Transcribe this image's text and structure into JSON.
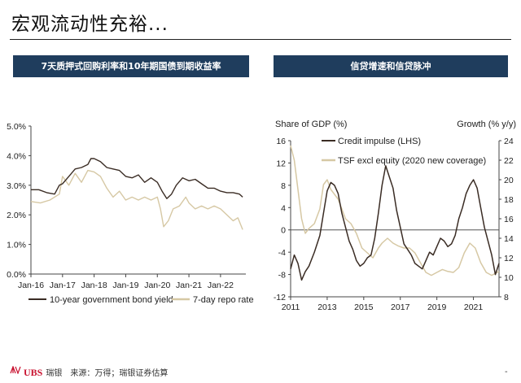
{
  "page": {
    "title": "宏观流动性充裕...",
    "left_panel_title": "7天质押式回购利率和10年期国债到期收益率",
    "right_panel_title": "信贷增速和信贷脉冲",
    "footer_brand": "UBS",
    "footer_brand_cn": "瑞银",
    "footer_source": "来源：万得；瑞银证券估算",
    "footer_mark": "-"
  },
  "colors": {
    "dark": "#3a2c24",
    "tan": "#d6c8a4",
    "header": "#1f3d5d"
  },
  "chart_data": [
    {
      "type": "line",
      "title": "7天质押式回购利率和10年期国债到期收益率",
      "x_ticks": [
        "Jan-16",
        "Jan-17",
        "Jan-18",
        "Jan-19",
        "Jan-20",
        "Jan-21",
        "Jan-22"
      ],
      "y_ticks": [
        "5.0%",
        "4.0%",
        "3.0%",
        "2.0%",
        "1.0%",
        "0.0%"
      ],
      "ylim": [
        0,
        5
      ],
      "xlim": [
        2016.0,
        2022.75
      ],
      "series": [
        {
          "name": "10-year government bond yield",
          "color": "#3a2c24",
          "x": [
            2016.0,
            2016.25,
            2016.5,
            2016.75,
            2016.9,
            2017.0,
            2017.2,
            2017.4,
            2017.6,
            2017.8,
            2017.9,
            2018.0,
            2018.2,
            2018.4,
            2018.6,
            2018.8,
            2019.0,
            2019.2,
            2019.4,
            2019.6,
            2019.8,
            2020.0,
            2020.15,
            2020.3,
            2020.45,
            2020.6,
            2020.8,
            2021.0,
            2021.2,
            2021.4,
            2021.6,
            2021.8,
            2022.0,
            2022.2,
            2022.4,
            2022.6,
            2022.7
          ],
          "y": [
            2.85,
            2.85,
            2.75,
            2.7,
            3.0,
            3.05,
            3.3,
            3.55,
            3.6,
            3.7,
            3.9,
            3.9,
            3.8,
            3.6,
            3.55,
            3.5,
            3.3,
            3.25,
            3.35,
            3.1,
            3.25,
            3.1,
            2.8,
            2.55,
            2.7,
            3.0,
            3.25,
            3.15,
            3.2,
            3.05,
            2.9,
            2.9,
            2.8,
            2.75,
            2.75,
            2.7,
            2.6
          ]
        },
        {
          "name": "7-day repo rate",
          "color": "#d6c8a4",
          "x": [
            2016.0,
            2016.3,
            2016.6,
            2016.9,
            2017.0,
            2017.2,
            2017.4,
            2017.6,
            2017.8,
            2018.0,
            2018.2,
            2018.4,
            2018.6,
            2018.8,
            2019.0,
            2019.2,
            2019.4,
            2019.6,
            2019.8,
            2020.0,
            2020.1,
            2020.2,
            2020.35,
            2020.5,
            2020.7,
            2020.9,
            2021.0,
            2021.2,
            2021.4,
            2021.6,
            2021.8,
            2022.0,
            2022.2,
            2022.4,
            2022.55,
            2022.7
          ],
          "y": [
            2.45,
            2.4,
            2.5,
            2.7,
            3.3,
            3.0,
            3.4,
            3.1,
            3.5,
            3.45,
            3.3,
            2.9,
            2.6,
            2.8,
            2.5,
            2.6,
            2.5,
            2.6,
            2.5,
            2.6,
            2.2,
            1.6,
            1.8,
            2.2,
            2.3,
            2.6,
            2.4,
            2.2,
            2.3,
            2.2,
            2.3,
            2.2,
            2.0,
            1.8,
            1.9,
            1.5
          ]
        }
      ],
      "legend": [
        "10-year government bond yield",
        "7-day repo rate"
      ],
      "legend_position": "bottom"
    },
    {
      "type": "line",
      "title": "信贷增速和信贷脉冲",
      "ylabel_left": "Share of GDP (%)",
      "ylabel_right": "Growth (% y/y)",
      "x_ticks": [
        "2011",
        "2013",
        "2015",
        "2017",
        "2019",
        "2021"
      ],
      "y_ticks_left": [
        "16",
        "12",
        "8",
        "4",
        "0",
        "-4",
        "-8",
        "-12"
      ],
      "y_ticks_right": [
        "24",
        "22",
        "20",
        "18",
        "16",
        "14",
        "12",
        "10",
        "8"
      ],
      "ylim_left": [
        -12,
        16
      ],
      "ylim_right": [
        8,
        24
      ],
      "xlim": [
        2011.0,
        2022.4
      ],
      "zero_line": 0,
      "series": [
        {
          "name": "Credit impulse (LHS)",
          "axis": "left",
          "color": "#3a2c24",
          "x": [
            2011.0,
            2011.2,
            2011.4,
            2011.6,
            2011.8,
            2012.0,
            2012.3,
            2012.6,
            2012.8,
            2013.0,
            2013.2,
            2013.4,
            2013.6,
            2013.8,
            2014.0,
            2014.2,
            2014.4,
            2014.6,
            2014.8,
            2015.0,
            2015.2,
            2015.4,
            2015.6,
            2015.8,
            2016.0,
            2016.2,
            2016.4,
            2016.6,
            2016.8,
            2017.0,
            2017.2,
            2017.4,
            2017.6,
            2017.8,
            2018.0,
            2018.2,
            2018.4,
            2018.6,
            2018.8,
            2019.0,
            2019.2,
            2019.4,
            2019.6,
            2019.8,
            2020.0,
            2020.2,
            2020.4,
            2020.6,
            2020.8,
            2021.0,
            2021.2,
            2021.4,
            2021.6,
            2021.8,
            2022.0,
            2022.2,
            2022.4
          ],
          "y": [
            -7.0,
            -4.5,
            -6.0,
            -9.0,
            -7.5,
            -6.5,
            -4.0,
            -1.0,
            3.0,
            7.0,
            8.5,
            8.0,
            6.5,
            3.0,
            0.5,
            -2.0,
            -3.5,
            -5.5,
            -6.5,
            -6.0,
            -5.0,
            -4.5,
            -1.5,
            3.0,
            8.0,
            11.5,
            9.5,
            7.5,
            3.5,
            0.5,
            -2.5,
            -3.5,
            -4.5,
            -6.0,
            -6.5,
            -7.0,
            -5.5,
            -4.0,
            -4.5,
            -3.0,
            -1.5,
            -2.0,
            -3.0,
            -2.5,
            -1.0,
            2.0,
            4.0,
            6.5,
            8.0,
            9.0,
            7.5,
            4.0,
            0.5,
            -2.0,
            -4.5,
            -8.0,
            -6.0
          ]
        },
        {
          "name": "TSF excl equity (2020 new coverage)",
          "axis": "right",
          "color": "#d6c8a4",
          "x": [
            2011.0,
            2011.2,
            2011.4,
            2011.6,
            2011.8,
            2012.0,
            2012.3,
            2012.6,
            2012.8,
            2013.0,
            2013.2,
            2013.4,
            2013.6,
            2013.8,
            2014.0,
            2014.3,
            2014.6,
            2014.9,
            2015.2,
            2015.5,
            2015.8,
            2016.0,
            2016.3,
            2016.6,
            2016.9,
            2017.2,
            2017.5,
            2017.8,
            2018.1,
            2018.4,
            2018.7,
            2019.0,
            2019.3,
            2019.6,
            2019.9,
            2020.2,
            2020.5,
            2020.8,
            2021.1,
            2021.4,
            2021.7,
            2022.0,
            2022.2,
            2022.4
          ],
          "y": [
            23.5,
            22.0,
            19.0,
            16.0,
            14.5,
            15.0,
            15.5,
            17.0,
            19.5,
            20.0,
            19.0,
            18.5,
            18.0,
            17.0,
            16.0,
            15.5,
            14.5,
            13.0,
            12.5,
            12.0,
            13.0,
            13.5,
            14.0,
            13.5,
            13.2,
            13.0,
            13.0,
            12.5,
            11.5,
            10.5,
            10.2,
            10.5,
            10.8,
            10.6,
            10.5,
            11.0,
            12.5,
            13.5,
            13.0,
            11.5,
            10.5,
            10.2,
            10.4,
            10.6
          ]
        }
      ],
      "legend": [
        "Credit impulse (LHS)",
        "TSF excl equity (2020 new coverage)"
      ],
      "legend_position": "top"
    }
  ]
}
